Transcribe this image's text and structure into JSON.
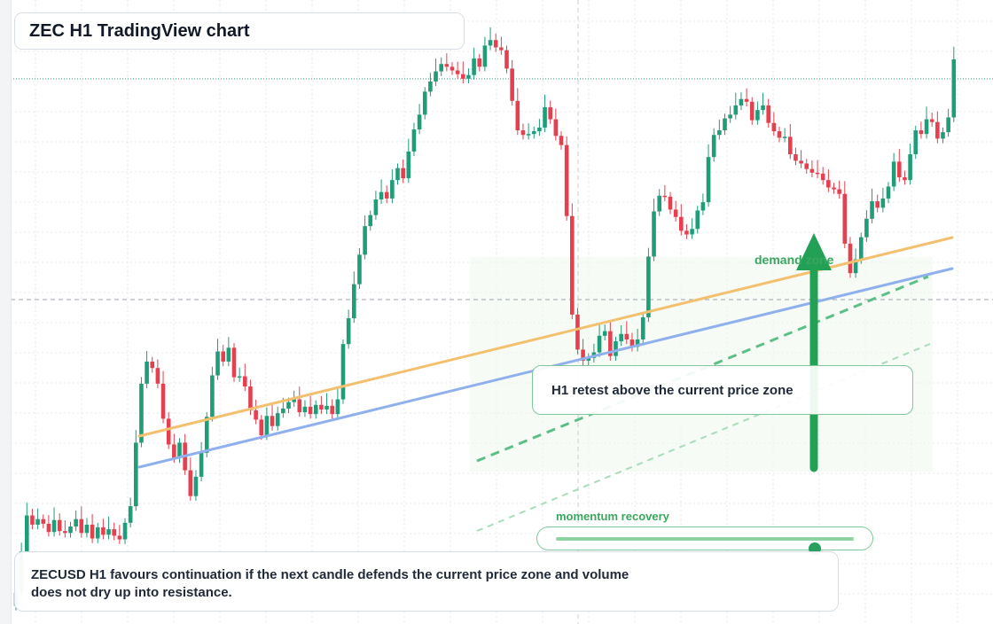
{
  "title": "ZEC H1 TradingView chart",
  "annotations": {
    "demand_label": "demand zone",
    "retest_callout": "H1 retest above the current price zone",
    "momentum_label": "momentum recovery",
    "momentum_level": 0.87
  },
  "footer": {
    "line1": "ZECUSD H1 favours continuation if the next candle defends the current price zone and volume",
    "line2": "does not dry up into resistance."
  },
  "colors": {
    "bull": "#1f9d78",
    "bear": "#e5404f",
    "trend_orange": "#f3c06f",
    "trend_blue": "#8fb0ec",
    "accent_green": "#22a055",
    "zone_fill": "#eef8ee"
  },
  "icons": {
    "demand_arrow": "arrow-up-icon"
  },
  "chart_data": {
    "type": "candlestick",
    "symbol": "ZECUSD",
    "timeframe": "H1",
    "closes": [
      21.0,
      25.5,
      29.4,
      28.4,
      29.0,
      28.5,
      27.6,
      28.9,
      27.7,
      27.5,
      28.2,
      29.0,
      27.5,
      28.4,
      26.9,
      28.1,
      27.3,
      27.9,
      27.2,
      26.8,
      28.6,
      30.4,
      37.3,
      43.7,
      46.1,
      45.4,
      43.7,
      39.9,
      37.1,
      35.6,
      37.3,
      34.3,
      31.5,
      33.6,
      36.2,
      40.1,
      44.6,
      47.2,
      46.1,
      47.6,
      44.4,
      44.5,
      43.4,
      40.8,
      39.8,
      38.1,
      40.2,
      39.1,
      40.5,
      41.0,
      41.7,
      42.0,
      40.6,
      41.2,
      40.4,
      41.4,
      40.9,
      41.3,
      40.4,
      42.0,
      48.0,
      50.8,
      54.5,
      57.7,
      60.8,
      62.0,
      63.7,
      64.5,
      63.8,
      65.8,
      67.1,
      66.0,
      68.9,
      71.3,
      72.9,
      75.4,
      76.5,
      77.6,
      78.4,
      78.1,
      77.7,
      77.3,
      76.8,
      77.2,
      79.0,
      78.1,
      80.4,
      81.0,
      80.2,
      79.9,
      77.9,
      74.4,
      71.2,
      70.7,
      70.8,
      71.1,
      71.5,
      73.7,
      72.4,
      70.6,
      69.6,
      61.9,
      51.2,
      47.4,
      46.2,
      46.5,
      47.1,
      48.9,
      49.4,
      46.7,
      48.3,
      49.1,
      48.5,
      47.7,
      48.5,
      50.9,
      57.5,
      62.4,
      64.1,
      64.0,
      62.6,
      61.8,
      60.3,
      59.9,
      60.5,
      62.5,
      63.4,
      68.3,
      70.7,
      71.2,
      72.5,
      72.9,
      73.9,
      74.6,
      74.3,
      72.3,
      73.4,
      73.9,
      72.0,
      71.1,
      70.4,
      70.5,
      68.6,
      67.9,
      67.6,
      67.0,
      66.6,
      66.5,
      65.8,
      65.0,
      64.8,
      64.3,
      58.9,
      55.7,
      57.2,
      59.6,
      61.6,
      63.5,
      62.8,
      63.8,
      65.1,
      67.8,
      66.1,
      65.8,
      68.6,
      71.2,
      70.8,
      72.4,
      72.1,
      70.3,
      71.0,
      72.6,
      78.9
    ],
    "annotations": [
      "demand zone",
      "H1 retest above the current price zone",
      "momentum recovery"
    ]
  }
}
